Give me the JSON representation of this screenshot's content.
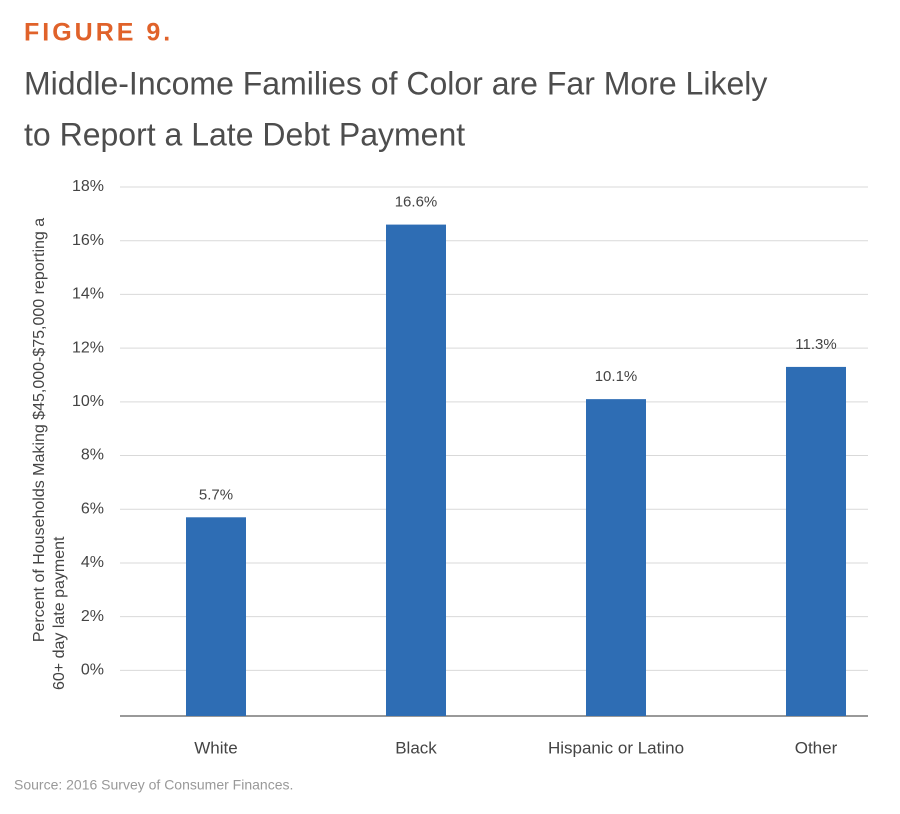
{
  "chart_data": {
    "type": "bar",
    "figure_label": "FIGURE 9.",
    "title": [
      "Middle-Income Families of Color are Far More Likely",
      "to Report a Late Debt Payment"
    ],
    "ylabel": [
      "Percent of Households Making $45,000-$75,000 reporting a",
      "60+ day late payment"
    ],
    "categories": [
      "White",
      "Black",
      "Hispanic or Latino",
      "Other"
    ],
    "values": [
      5.7,
      16.6,
      10.1,
      11.3
    ],
    "value_labels": [
      "5.7%",
      "16.6%",
      "10.1%",
      "11.3%"
    ],
    "color": "#2e6db4",
    "ylim": [
      -1.7,
      18
    ],
    "yticks": [
      {
        "value": 0,
        "label": "0%"
      },
      {
        "value": 2,
        "label": "2%"
      },
      {
        "value": 4,
        "label": "4%"
      },
      {
        "value": 6,
        "label": "6%"
      },
      {
        "value": 8,
        "label": "8%"
      },
      {
        "value": 10,
        "label": "10%"
      },
      {
        "value": 12,
        "label": "12%"
      },
      {
        "value": 14,
        "label": "14%"
      },
      {
        "value": 16,
        "label": "16%"
      },
      {
        "value": 18,
        "label": "18%"
      }
    ],
    "grid": true,
    "source": "Source: 2016 Survey of Consumer Finances."
  }
}
